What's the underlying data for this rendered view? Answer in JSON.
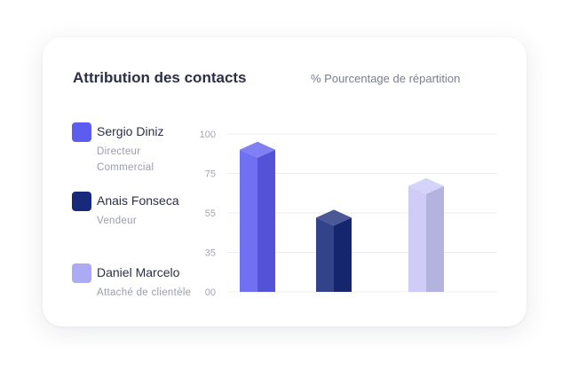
{
  "card": {
    "title": "Attribution des contacts",
    "subtitle": "% Pourcentage de répartition"
  },
  "legend": [
    {
      "name": "Sergio Diniz",
      "role": "Directeur Commercial",
      "color": "#5d5cf0"
    },
    {
      "name": "Anais Fonseca",
      "role": "Vendeur",
      "color": "#17297a"
    },
    {
      "name": "Daniel Marcelo",
      "role": "Attaché de clientèle",
      "color": "#adaaf5"
    }
  ],
  "chart_data": {
    "type": "bar",
    "y_ticks": [
      "100",
      "75",
      "55",
      "35",
      "00"
    ],
    "grid": true,
    "series": [
      {
        "name": "Sergio Diniz",
        "value": 90,
        "color": "#5d5cf0"
      },
      {
        "name": "Anais Fonseca",
        "value": 47,
        "color": "#17297a"
      },
      {
        "name": "Daniel Marcelo",
        "value": 67,
        "color": "#c8c6f7"
      }
    ]
  }
}
